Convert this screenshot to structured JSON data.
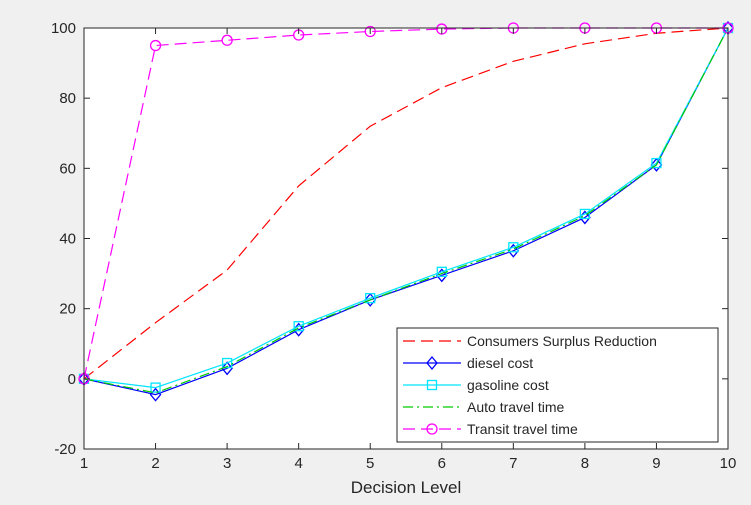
{
  "chart_data": {
    "type": "line",
    "title": "",
    "xlabel": "Decision Level",
    "ylabel": "",
    "xlim": [
      1,
      10
    ],
    "ylim": [
      -20,
      100
    ],
    "x": [
      1,
      2,
      3,
      4,
      5,
      6,
      7,
      8,
      9,
      10
    ],
    "xticks": [
      "1",
      "2",
      "3",
      "4",
      "5",
      "6",
      "7",
      "8",
      "9",
      "10"
    ],
    "yticks": [
      "-20",
      "0",
      "20",
      "40",
      "60",
      "80",
      "100"
    ],
    "grid": false,
    "legend_position": "bottom-right",
    "series": [
      {
        "name": "Consumers Surplus Reduction",
        "values": [
          0,
          16,
          31,
          55,
          72,
          83,
          90.5,
          95.5,
          98.5,
          100
        ],
        "color": "#ff0000",
        "line_style": "dashed",
        "marker": "none"
      },
      {
        "name": "diesel cost",
        "values": [
          0,
          -4.5,
          3,
          14,
          22.5,
          29.5,
          36.5,
          46,
          61,
          100
        ],
        "color": "#0000ff",
        "line_style": "solid",
        "marker": "diamond"
      },
      {
        "name": "gasoline cost",
        "values": [
          0,
          -2.5,
          4.5,
          15,
          23,
          30.5,
          37.5,
          47,
          61.5,
          100
        ],
        "color": "#00e5ff",
        "line_style": "solid",
        "marker": "square"
      },
      {
        "name": "Auto travel time",
        "values": [
          0,
          -4,
          3.5,
          14.5,
          22.5,
          30,
          37,
          46.5,
          61,
          100
        ],
        "color": "#00cc00",
        "line_style": "dashdot",
        "marker": "none"
      },
      {
        "name": "Transit travel time",
        "values": [
          0,
          95,
          96.5,
          98,
          99,
          99.7,
          100,
          100,
          100,
          100
        ],
        "color": "#ff00ff",
        "line_style": "dashed",
        "marker": "circle"
      }
    ]
  }
}
